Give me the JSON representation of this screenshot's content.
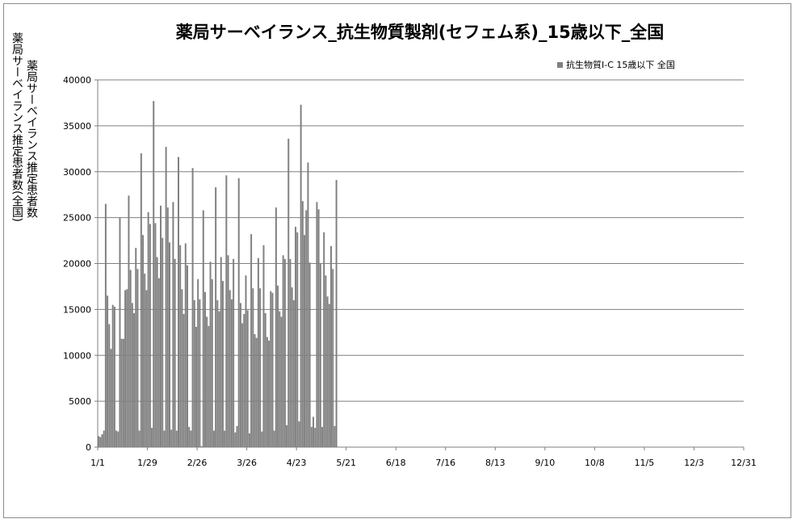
{
  "chart_data": {
    "type": "bar",
    "title": "薬局サーベイランス_抗生物質製剤(セフェム系)_15歳以下_全国",
    "ylabel": "薬局サーベイランス推定患者数(全国)",
    "ylabel_column_2": "薬局サーベイランス推定患者数",
    "ylim": [
      0,
      40000
    ],
    "yticks": [
      0,
      5000,
      10000,
      15000,
      20000,
      25000,
      30000,
      35000,
      40000
    ],
    "xlim": [
      "1/1",
      "12/31"
    ],
    "xtick_labels": [
      "1/1",
      "1/29",
      "2/26",
      "3/26",
      "4/23",
      "5/21",
      "6/18",
      "7/16",
      "8/13",
      "9/10",
      "10/8",
      "11/5",
      "12/3",
      "12/31"
    ],
    "grid": "horizontal",
    "legend_position": "top-right",
    "series": [
      {
        "name": "抗生物質Ⅰ-C 15歳以下 全国",
        "color": "#808080",
        "start_date": "1/1",
        "values": [
          1200,
          1100,
          1400,
          1800,
          26500,
          16500,
          13400,
          10700,
          15500,
          15300,
          1800,
          1700,
          25000,
          11800,
          11800,
          17100,
          17200,
          27400,
          19300,
          15700,
          14600,
          21700,
          19400,
          1800,
          32000,
          23100,
          18900,
          17100,
          25600,
          24300,
          2100,
          37700,
          24400,
          20700,
          18400,
          26300,
          22800,
          1800,
          32700,
          26100,
          22300,
          1900,
          26700,
          20500,
          1800,
          31600,
          22000,
          17200,
          14500,
          22200,
          19800,
          2200,
          1800,
          30400,
          16000,
          13100,
          18300,
          16100,
          100,
          25800,
          16900,
          14200,
          13200,
          20200,
          18300,
          1800,
          28300,
          16000,
          14800,
          20700,
          18100,
          1800,
          29600,
          20900,
          17100,
          16100,
          20500,
          1600,
          2300,
          29300,
          15700,
          13500,
          14500,
          18700,
          14900,
          1500,
          23200,
          17300,
          12300,
          11900,
          20600,
          17300,
          1700,
          22000,
          14600,
          12000,
          11600,
          17000,
          16800,
          1800,
          26100,
          17600,
          14800,
          14200,
          20900,
          20500,
          2400,
          33600,
          20500,
          17400,
          16000,
          24000,
          23400,
          2800,
          37300,
          26800,
          23100,
          25800,
          31000,
          20100,
          2200,
          3300,
          2100,
          26700,
          25900,
          20000,
          2200,
          23400,
          18700,
          16400,
          15600,
          21900,
          19400,
          2300,
          29100
        ]
      }
    ]
  }
}
